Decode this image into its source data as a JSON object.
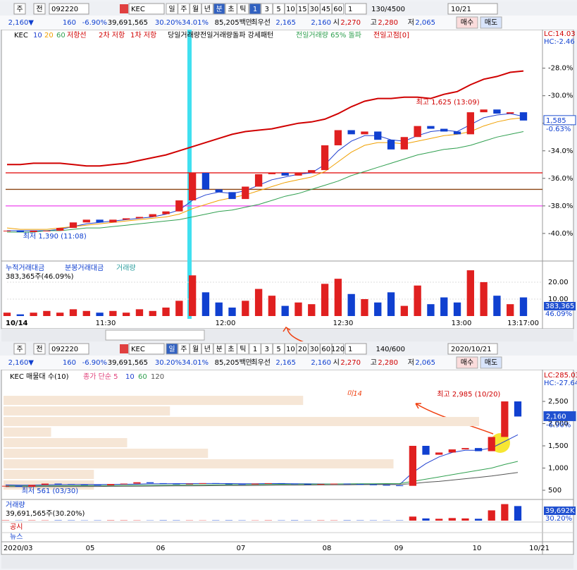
{
  "toolbar1": {
    "buttons": [
      "주",
      "전"
    ],
    "code": "092220",
    "name": "KEC",
    "periods": [
      "일",
      "주",
      "월",
      "년",
      "분",
      "초",
      "틱"
    ],
    "intervals": [
      "1",
      "3",
      "5",
      "10",
      "15",
      "30",
      "45",
      "60"
    ],
    "count": "1",
    "bars": "130/4500",
    "date": "10/21"
  },
  "quote1": [
    "2,160▼",
    "160",
    "-6.90%",
    "39,691,565",
    "30.20%",
    "34.01%",
    "85,205백만",
    "최우선",
    "2,165",
    "2,160",
    "시",
    "2,270",
    "고",
    "2,280",
    "저",
    "2,065"
  ],
  "orders1": [
    "매수",
    "매도"
  ],
  "chart1": {
    "legend": [
      "KEC",
      "10",
      "20",
      "60",
      "저항선",
      "2차 저항",
      "1차 저항",
      "당일거래량전일거래량돌파 강세패턴",
      "전일거래량 65% 돌파",
      "전일고점[0]"
    ],
    "ylim": [
      -41.9,
      -25.2
    ],
    "yticks": [
      {
        "value": -28,
        "label": "-28.0%"
      },
      {
        "value": -30,
        "label": "-30.0%"
      },
      {
        "value": -32,
        "label": "-32.0%"
      },
      {
        "value": -34,
        "label": "-34.0%"
      },
      {
        "value": -36,
        "label": "-36.0%"
      },
      {
        "value": -38,
        "label": "-38.0%"
      },
      {
        "value": -40,
        "label": "-40.0%"
      }
    ],
    "lc": "LC:14.03",
    "hc": "HC:-2.46",
    "last": "1,585",
    "last_pct": "-0.63%",
    "high_note": "최고 1,625 (13:09)",
    "low_note": "최저 1,390 (11:08)",
    "close": [
      -39.8,
      -39.9,
      -39.8,
      -39.8,
      -39.6,
      -39.2,
      -39.0,
      -39.2,
      -39.0,
      -38.9,
      -38.8,
      -38.6,
      -38.4,
      -37.6,
      -35.6,
      -36.8,
      -37.0,
      -37.5,
      -36.6,
      -35.7,
      -35.6,
      -35.8,
      -35.6,
      -35.4,
      -33.6,
      -32.5,
      -32.8,
      -32.6,
      -33.2,
      -33.9,
      -33.0,
      -32.2,
      -32.4,
      -32.6,
      -32.8,
      -31.2,
      -31.0,
      -31.3,
      -31.2,
      -31.8
    ],
    "series": [
      {
        "name": "10",
        "color": "#2040d0",
        "values": [
          -39.8,
          -39.8,
          -39.8,
          -39.8,
          -39.7,
          -39.5,
          -39.3,
          -39.2,
          -39.1,
          -39.0,
          -38.9,
          -38.8,
          -38.6,
          -38.3,
          -37.6,
          -37.2,
          -37.0,
          -37.1,
          -36.9,
          -36.5,
          -36.1,
          -35.9,
          -35.7,
          -35.6,
          -35.0,
          -34.0,
          -33.3,
          -32.9,
          -32.9,
          -33.2,
          -33.3,
          -32.9,
          -32.6,
          -32.5,
          -32.6,
          -32.1,
          -31.6,
          -31.4,
          -31.3,
          -31.5
        ]
      },
      {
        "name": "20",
        "color": "#f0a000",
        "values": [
          -39.6,
          -39.7,
          -39.7,
          -39.7,
          -39.6,
          -39.5,
          -39.4,
          -39.3,
          -39.2,
          -39.1,
          -39.0,
          -38.9,
          -38.8,
          -38.6,
          -38.2,
          -37.9,
          -37.6,
          -37.4,
          -37.2,
          -36.9,
          -36.6,
          -36.3,
          -36.1,
          -35.9,
          -35.5,
          -34.8,
          -34.1,
          -33.6,
          -33.4,
          -33.4,
          -33.5,
          -33.3,
          -33.1,
          -32.9,
          -32.8,
          -32.6,
          -32.2,
          -31.9,
          -31.7,
          -31.6
        ]
      },
      {
        "name": "60",
        "color": "#30a050",
        "values": [
          -39.9,
          -39.9,
          -39.9,
          -39.8,
          -39.8,
          -39.7,
          -39.6,
          -39.6,
          -39.5,
          -39.4,
          -39.3,
          -39.2,
          -39.1,
          -39.0,
          -38.8,
          -38.6,
          -38.4,
          -38.3,
          -38.1,
          -37.9,
          -37.6,
          -37.3,
          -37.1,
          -36.8,
          -36.5,
          -36.2,
          -35.8,
          -35.5,
          -35.2,
          -34.9,
          -34.6,
          -34.3,
          -34.1,
          -33.9,
          -33.8,
          -33.6,
          -33.3,
          -33.0,
          -32.8,
          -32.6
        ]
      },
      {
        "name": "저항선",
        "color": "#d00000",
        "values": [
          -35.0,
          -35.0,
          -34.9,
          -34.9,
          -34.9,
          -35.0,
          -35.1,
          -35.1,
          -35.0,
          -34.9,
          -34.7,
          -34.5,
          -34.3,
          -34.0,
          -33.7,
          -33.4,
          -33.1,
          -32.8,
          -32.6,
          -32.5,
          -32.4,
          -32.2,
          -32.0,
          -31.9,
          -31.7,
          -31.3,
          -30.8,
          -30.4,
          -30.2,
          -30.2,
          -30.1,
          -30.1,
          -30.2,
          -29.9,
          -29.7,
          -29.2,
          -28.8,
          -28.6,
          -28.3,
          -28.2
        ]
      }
    ],
    "levels": [
      {
        "value": -35.6,
        "color": "#e00000"
      },
      {
        "value": -36.8,
        "color": "#8b4513"
      },
      {
        "value": -38.0,
        "color": "#ee44ee"
      }
    ],
    "volume_legend": [
      "누적거래대금",
      "분봉거래대금",
      "거래량"
    ],
    "volume_note": "383,365주(46.09%)",
    "volume_last": "383,365",
    "volume_pct": "46.09%",
    "vlim": [
      0,
      30.8
    ],
    "vticks": [
      {
        "value": 20,
        "label": "20.00"
      },
      {
        "value": 10,
        "label": "10.00"
      }
    ],
    "volume": [
      2,
      1,
      2,
      3,
      2,
      4,
      3,
      2,
      3,
      2,
      4,
      3,
      5,
      9,
      24,
      14,
      8,
      5,
      9,
      16,
      12,
      6,
      8,
      7,
      19,
      22,
      13,
      10,
      8,
      14,
      6,
      18,
      7,
      11,
      8,
      27,
      20,
      12,
      7,
      11
    ],
    "x_labels": [
      "10/14",
      "11:30",
      "12:00",
      "12:30",
      "13:00",
      "13:17:00"
    ]
  },
  "toolbar2": {
    "buttons": [
      "주",
      "전"
    ],
    "code": "092220",
    "name": "KEC",
    "periods": [
      "일",
      "주",
      "월",
      "년",
      "분",
      "초",
      "틱"
    ],
    "intervals": [
      "1",
      "3",
      "5",
      "10",
      "20",
      "30",
      "60",
      "120"
    ],
    "count": "1",
    "bars": "140/600",
    "date": "2020/10/21"
  },
  "quote2": [
    "2,160▼",
    "160",
    "-6.90%",
    "39,691,565",
    "30.20%",
    "34.01%",
    "85,205백만",
    "최우선",
    "2,165",
    "2,160",
    "시",
    "2,270",
    "고",
    "2,280",
    "저",
    "2,065"
  ],
  "orders2": [
    "매수",
    "매도"
  ],
  "chart2": {
    "legend": [
      "KEC 매물대 수(10)",
      "종가 단순 5",
      "10",
      "60",
      "120"
    ],
    "ylim": [
      325,
      3183
    ],
    "yticks": [
      {
        "value": 2500,
        "label": "2,500"
      },
      {
        "value": 2000,
        "label": "2,000"
      },
      {
        "value": 1500,
        "label": "1,500"
      },
      {
        "value": 1000,
        "label": "1,000"
      },
      500
    ],
    "lc": "LC:285.03",
    "hc": "HC:-27.64",
    "last": "2,160",
    "last_pct": "-6.90%",
    "high_note": "최고 2,985 (10/20)",
    "low_note": "최저 561 (03/30)",
    "handwriting": "미14",
    "close": [
      600,
      580,
      620,
      650,
      640,
      630,
      620,
      610,
      640,
      650,
      680,
      660,
      650,
      640,
      650,
      660,
      650,
      640,
      630,
      650,
      660,
      650,
      640,
      630,
      640,
      650,
      640,
      630,
      620,
      610,
      600,
      1500,
      1300,
      1350,
      1420,
      1450,
      1380,
      1700,
      2500,
      2160
    ],
    "series": [
      {
        "name": "10",
        "color": "#2040d0",
        "values": [
          620,
          615,
          615,
          620,
          625,
          628,
          630,
          628,
          630,
          635,
          640,
          645,
          648,
          650,
          650,
          652,
          652,
          650,
          648,
          648,
          650,
          650,
          648,
          645,
          643,
          642,
          641,
          640,
          636,
          632,
          628,
          900,
          1100,
          1250,
          1350,
          1400,
          1400,
          1450,
          1600,
          1750
        ]
      },
      {
        "name": "60",
        "color": "#30a050",
        "values": [
          600,
          598,
          597,
          598,
          600,
          602,
          604,
          606,
          608,
          610,
          612,
          614,
          616,
          618,
          620,
          622,
          624,
          626,
          628,
          630,
          632,
          634,
          636,
          638,
          640,
          642,
          644,
          646,
          648,
          650,
          652,
          700,
          750,
          800,
          850,
          900,
          950,
          1000,
          1080,
          1150
        ]
      },
      {
        "name": "120",
        "color": "#555555",
        "values": [
          580,
          580,
          581,
          582,
          583,
          584,
          585,
          586,
          588,
          590,
          592,
          594,
          596,
          598,
          600,
          602,
          604,
          606,
          608,
          610,
          612,
          614,
          616,
          618,
          620,
          622,
          624,
          626,
          628,
          630,
          632,
          650,
          680,
          700,
          730,
          760,
          790,
          820,
          860,
          900
        ]
      }
    ],
    "profile_bins": [
      500,
      738,
      976,
      1214,
      1452,
      1690,
      1928,
      2166,
      2404,
      2642,
      2880
    ],
    "profile": [
      19,
      19,
      82,
      43,
      26,
      10,
      100,
      35,
      63,
      0
    ],
    "volume_label": "거래량",
    "volume_note": "39,691,565주(30.20%)",
    "volume_last": "39,692K",
    "volume_pct": "30.20%",
    "vlim": [
      0,
      50000
    ],
    "volume": [
      900,
      600,
      800,
      700,
      900,
      800,
      600,
      700,
      900,
      800,
      700,
      600,
      900,
      800,
      700,
      600,
      800,
      900,
      700,
      600,
      800,
      700,
      900,
      600,
      800,
      700,
      900,
      800,
      700,
      600,
      800,
      11000,
      6000,
      5000,
      7000,
      6000,
      5000,
      28000,
      45000,
      39692
    ],
    "rows": [
      "공시",
      "뉴스"
    ],
    "x_labels": [
      "2020/03",
      "05",
      "06",
      "07",
      "08",
      "09",
      "10",
      "10/21"
    ]
  }
}
